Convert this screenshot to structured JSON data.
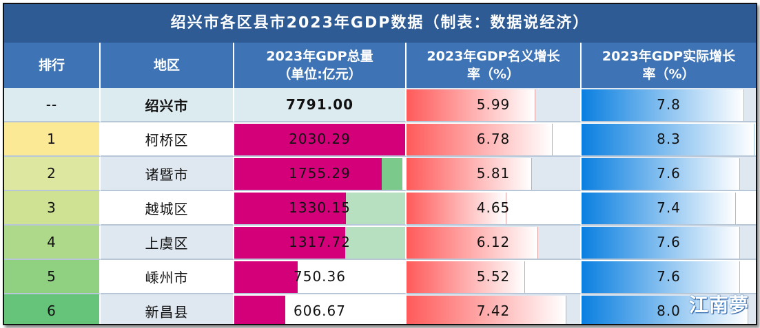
{
  "title": "绍兴市各区县市2023年GDP数据（制表：数据说经济）",
  "headers": {
    "rank": "排行",
    "region": "地区",
    "gdp_line1": "2023年GDP总量",
    "gdp_line2": "（单位:亿元）",
    "nominal_line1": "2023年GDP名义增长",
    "nominal_line2": "率（%）",
    "real_line1": "2023年GDP实际增长",
    "real_line2": "率（%）"
  },
  "rows": [
    {
      "rank": "--",
      "region": "绍兴市",
      "gdp": "7791.00",
      "gdp_value": 7791.0,
      "nominal": "5.99",
      "nominal_value": 5.99,
      "real": "7.8",
      "real_value": 7.8
    },
    {
      "rank": "1",
      "region": "柯桥区",
      "gdp": "2030.29",
      "gdp_value": 2030.29,
      "nominal": "6.78",
      "nominal_value": 6.78,
      "real": "8.3",
      "real_value": 8.3
    },
    {
      "rank": "2",
      "region": "诸暨市",
      "gdp": "1755.29",
      "gdp_value": 1755.29,
      "nominal": "5.81",
      "nominal_value": 5.81,
      "real": "7.6",
      "real_value": 7.6
    },
    {
      "rank": "3",
      "region": "越城区",
      "gdp": "1330.15",
      "gdp_value": 1330.15,
      "nominal": "4.65",
      "nominal_value": 4.65,
      "real": "7.4",
      "real_value": 7.4
    },
    {
      "rank": "4",
      "region": "上虞区",
      "gdp": "1317.72",
      "gdp_value": 1317.72,
      "nominal": "6.12",
      "nominal_value": 6.12,
      "real": "7.6",
      "real_value": 7.6
    },
    {
      "rank": "5",
      "region": "嵊州市",
      "gdp": "750.36",
      "gdp_value": 750.36,
      "nominal": "5.52",
      "nominal_value": 5.52,
      "real": "7.6",
      "real_value": 7.6
    },
    {
      "rank": "6",
      "region": "新昌县",
      "gdp": "606.67",
      "gdp_value": 606.67,
      "nominal": "7.42",
      "nominal_value": 7.42,
      "real": "8.0",
      "real_value": 8.0
    }
  ],
  "colors": {
    "title_bg": "#2e5b94",
    "header_bg": "#3e73b5",
    "gdp_bar": "#d3007a",
    "rank_colors": [
      "#dcebf0",
      "#fbe996",
      "#dde7a0",
      "#cfe192",
      "#aed98a",
      "#8fd081",
      "#66c37a"
    ]
  },
  "watermark": "江南夢"
}
